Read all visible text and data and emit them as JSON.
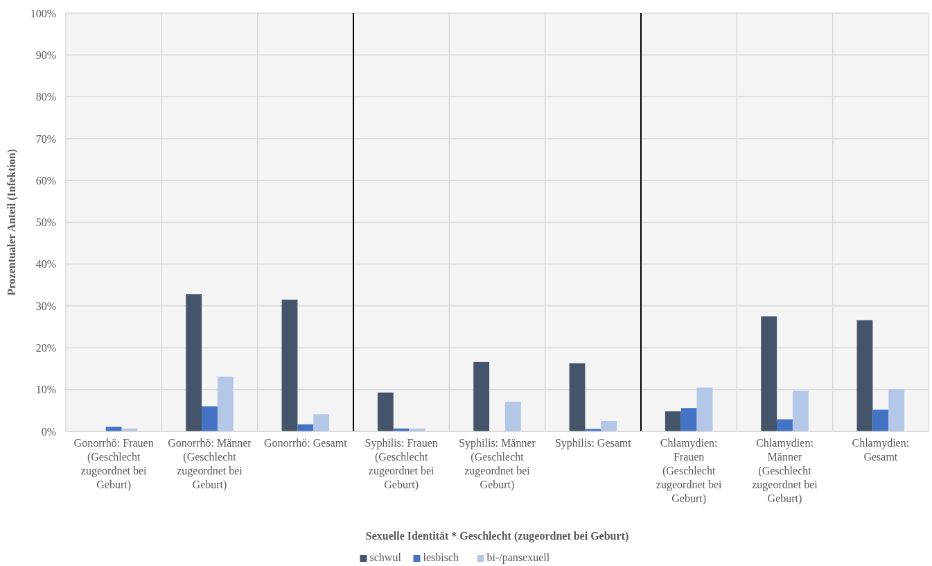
{
  "chart_data": {
    "type": "bar",
    "xlabel": "Sexuelle Identität * Geschlecht (zugeordnet bei Geburt)",
    "ylabel": "Prozentualer Anteil (Infektion)",
    "categories": [
      "Gonorrhö: Frauen (Geschlecht zugeordnet bei Geburt)",
      "Gonorrhö: Männer (Geschlecht zugeordnet bei Geburt)",
      "Gonorrhö: Gesamt",
      "Syphilis: Frauen (Geschlecht zugeordnet bei Geburt)",
      "Syphilis: Männer (Geschlecht zugeordnet bei Geburt)",
      "Syphilis: Gesamt",
      "Chlamydien: Frauen (Geschlecht zugeordnet bei Geburt)",
      "Chlamydien: Männer (Geschlecht zugeordnet bei Geburt)",
      "Chlamydien: Gesamt"
    ],
    "series": [
      {
        "name": "schwul",
        "color": "#44546a",
        "values": [
          0,
          32.8,
          31.5,
          9.3,
          16.6,
          16.3,
          4.8,
          27.5,
          26.6
        ]
      },
      {
        "name": "lesbisch",
        "color": "#4472c4",
        "values": [
          1.1,
          6.0,
          1.7,
          0.7,
          0,
          0.6,
          5.6,
          2.9,
          5.2
        ]
      },
      {
        "name": "bi-/pansexuell",
        "color": "#b4c7e7",
        "values": [
          0.7,
          13.1,
          4.1,
          0.7,
          7.1,
          2.5,
          10.5,
          9.7,
          10.1
        ]
      }
    ],
    "ylim": [
      0,
      100
    ],
    "yticks": [
      {
        "value": 0,
        "label": "0%"
      },
      {
        "value": 10,
        "label": "10%"
      },
      {
        "value": 20,
        "label": "20%"
      },
      {
        "value": 30,
        "label": "30%"
      },
      {
        "value": 40,
        "label": "40%"
      },
      {
        "value": 50,
        "label": "50%"
      },
      {
        "value": 60,
        "label": "60%"
      },
      {
        "value": 70,
        "label": "70%"
      },
      {
        "value": 80,
        "label": "80%"
      },
      {
        "value": 90,
        "label": "90%"
      },
      {
        "value": 100,
        "label": "100%"
      }
    ],
    "grid": true,
    "legend": "bottom"
  }
}
